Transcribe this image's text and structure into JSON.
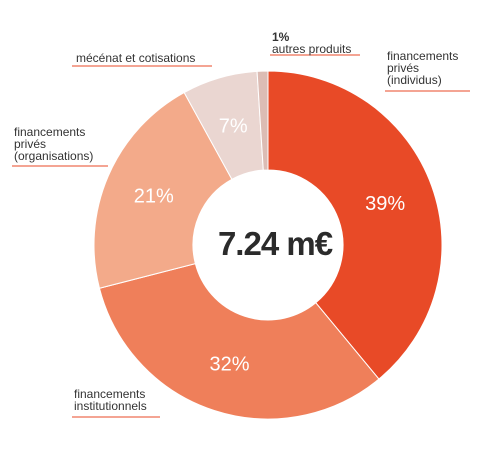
{
  "chart_data": {
    "type": "donut",
    "total": "7.24 m€",
    "slices": [
      {
        "label": "financements privés (individus)",
        "label_lines": [
          "financements",
          "privés",
          "(individus)"
        ],
        "value": 39,
        "pct_label": "39%",
        "color": "#e84a27"
      },
      {
        "label": "financements institutionnels",
        "label_lines": [
          "financements",
          "institutionnels"
        ],
        "value": 32,
        "pct_label": "32%",
        "color": "#ef7f5a"
      },
      {
        "label": "financements privés (organisations)",
        "label_lines": [
          "financements",
          "privés",
          "(organisations)"
        ],
        "value": 21,
        "pct_label": "21%",
        "color": "#f3aa8a"
      },
      {
        "label": "mécénat et cotisations",
        "label_lines": [
          "mécénat et cotisations"
        ],
        "value": 7,
        "pct_label": "7%",
        "color": "#ead6d1"
      },
      {
        "label": "autres produits",
        "label_lines": [
          "autres produits"
        ],
        "value": 1,
        "pct_label": "1%",
        "color": "#dcbcb4"
      }
    ]
  }
}
